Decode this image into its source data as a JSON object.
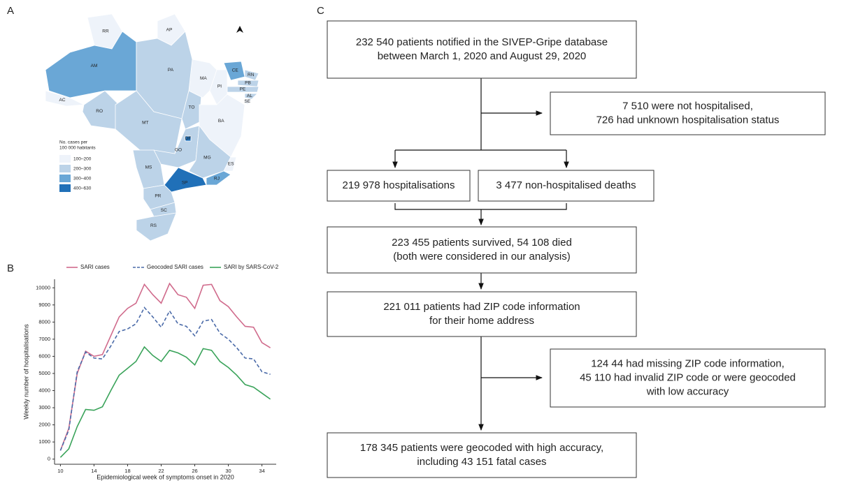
{
  "panels": {
    "a": "A",
    "b": "B",
    "c": "C"
  },
  "map": {
    "legend_title": [
      "No. cases per",
      "100 000 habitants"
    ],
    "legend": [
      {
        "label": "100–200",
        "color": "#eef3fa"
      },
      {
        "label": "200–300",
        "color": "#bcd3e8"
      },
      {
        "label": "300–400",
        "color": "#6aa7d6"
      },
      {
        "label": "400–630",
        "color": "#2070b8"
      }
    ],
    "states": [
      {
        "label": "RR",
        "class": 0
      },
      {
        "label": "AP",
        "class": 0
      },
      {
        "label": "AM",
        "class": 2
      },
      {
        "label": "PA",
        "class": 1
      },
      {
        "label": "AC",
        "class": 0
      },
      {
        "label": "RO",
        "class": 1
      },
      {
        "label": "MT",
        "class": 1
      },
      {
        "label": "TO",
        "class": 1
      },
      {
        "label": "MA",
        "class": 0
      },
      {
        "label": "PI",
        "class": 0
      },
      {
        "label": "CE",
        "class": 2
      },
      {
        "label": "RN",
        "class": 1
      },
      {
        "label": "PB",
        "class": 1
      },
      {
        "label": "PE",
        "class": 1
      },
      {
        "label": "AL",
        "class": 1
      },
      {
        "label": "SE",
        "class": 0
      },
      {
        "label": "BA",
        "class": 0
      },
      {
        "label": "GO",
        "class": 1
      },
      {
        "label": "DF",
        "class": 3
      },
      {
        "label": "MG",
        "class": 1
      },
      {
        "label": "ES",
        "class": 0
      },
      {
        "label": "MS",
        "class": 1
      },
      {
        "label": "SP",
        "class": 3
      },
      {
        "label": "RJ",
        "class": 2
      },
      {
        "label": "PR",
        "class": 1
      },
      {
        "label": "SC",
        "class": 1
      },
      {
        "label": "RS",
        "class": 1
      }
    ]
  },
  "chart_data": {
    "type": "line",
    "x_label": "Epidemiological week of symptoms onset in 2020",
    "y_label": "Weekly number of hospitalisations",
    "x": [
      10,
      11,
      12,
      13,
      14,
      15,
      16,
      17,
      18,
      19,
      20,
      21,
      22,
      23,
      24,
      25,
      26,
      27,
      28,
      29,
      30,
      31,
      32,
      33,
      34,
      35
    ],
    "xlim": [
      9.3,
      35.7
    ],
    "xticks": [
      10,
      14,
      18,
      22,
      26,
      30,
      34
    ],
    "ylim": [
      -300,
      10500
    ],
    "yticks": [
      0,
      1000,
      2000,
      3000,
      4000,
      5000,
      6000,
      7000,
      8000,
      9000,
      10000
    ],
    "series": [
      {
        "name": "SARI cases",
        "color": "#d06b8c",
        "dashed": false,
        "values": [
          500,
          1800,
          5000,
          6300,
          6000,
          6100,
          7200,
          8300,
          8800,
          9100,
          10200,
          9600,
          9100,
          10250,
          9600,
          9450,
          8800,
          10150,
          10200,
          9250,
          8900,
          8300,
          7750,
          7700,
          6800,
          6500
        ]
      },
      {
        "name": "Geocoded SARI cases",
        "color": "#4a6aa8",
        "dashed": true,
        "values": [
          500,
          1700,
          5100,
          6250,
          5900,
          5850,
          6600,
          7450,
          7600,
          7900,
          8850,
          8300,
          7700,
          8650,
          7900,
          7750,
          7200,
          8050,
          8150,
          7350,
          7000,
          6500,
          5900,
          5850,
          5100,
          4950
        ]
      },
      {
        "name": "SARI by SARS-CoV-2",
        "color": "#3aa35a",
        "dashed": false,
        "values": [
          100,
          600,
          1900,
          2900,
          2850,
          3050,
          4000,
          4900,
          5300,
          5700,
          6550,
          6050,
          5700,
          6350,
          6200,
          5950,
          5500,
          6450,
          6350,
          5700,
          5350,
          4900,
          4350,
          4200,
          3850,
          3500
        ]
      }
    ]
  },
  "flowchart": {
    "boxes": [
      {
        "lines": [
          "232 540 patients notified in the SIVEP-Gripe database",
          "between March 1, 2020 and August 29, 2020"
        ]
      },
      {
        "lines": [
          "7 510 were not hospitalised,",
          "726 had unknown hospitalisation status"
        ]
      },
      {
        "lines": [
          "219 978 hospitalisations"
        ]
      },
      {
        "lines": [
          "3 477 non-hospitalised deaths"
        ]
      },
      {
        "lines": [
          "223 455 patients survived, 54 108 died",
          "(both were considered in our analysis)"
        ]
      },
      {
        "lines": [
          "221 011 patients had ZIP code information",
          "for their home address"
        ]
      },
      {
        "lines": [
          "124 44 had missing ZIP code information,",
          "45 110 had invalid ZIP code or were geocoded",
          "with low accuracy"
        ]
      },
      {
        "lines": [
          "178 345 patients were geocoded with high accuracy,",
          "including 43 151 fatal cases"
        ]
      }
    ]
  }
}
